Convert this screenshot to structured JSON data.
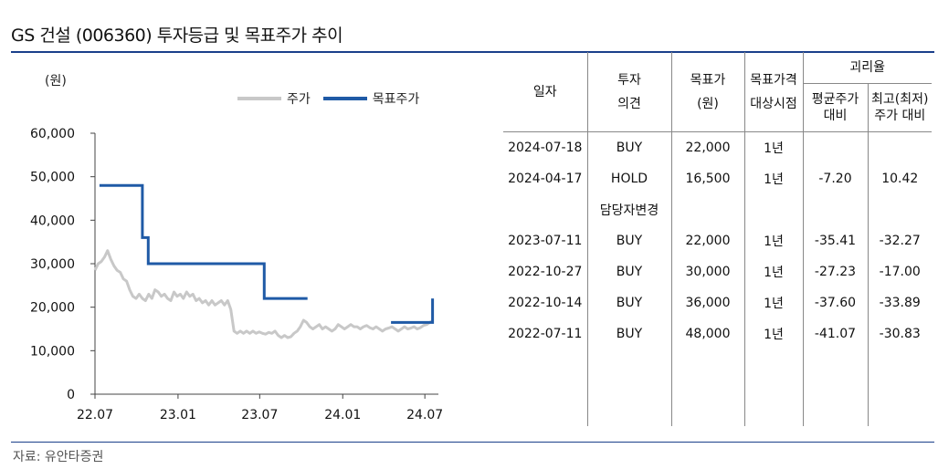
{
  "title": "GS 건설 (006360) 투자등급 및 목표주가 추이",
  "source": "자료: 유안타증권",
  "chart_data": {
    "type": "line",
    "unit": "(원)",
    "y_ticks": [
      "60,000",
      "50,000",
      "40,000",
      "30,000",
      "20,000",
      "10,000",
      "0"
    ],
    "ylim": [
      0,
      60000
    ],
    "x_ticks": [
      "22.07",
      "23.01",
      "23.07",
      "24.01",
      "24.07"
    ],
    "xlim": [
      "2022-07-01",
      "2024-07-31"
    ],
    "grid": false,
    "legend_position": "top",
    "series": [
      {
        "name": "주가",
        "color": "#c8c8c8",
        "points": [
          [
            "2022-07-01",
            28500
          ],
          [
            "2022-07-08",
            30000
          ],
          [
            "2022-07-15",
            30500
          ],
          [
            "2022-07-22",
            31500
          ],
          [
            "2022-07-29",
            33000
          ],
          [
            "2022-08-05",
            31000
          ],
          [
            "2022-08-12",
            29500
          ],
          [
            "2022-08-19",
            28500
          ],
          [
            "2022-08-26",
            28000
          ],
          [
            "2022-09-02",
            26500
          ],
          [
            "2022-09-09",
            26000
          ],
          [
            "2022-09-16",
            24000
          ],
          [
            "2022-09-23",
            22500
          ],
          [
            "2022-09-30",
            22000
          ],
          [
            "2022-10-07",
            23000
          ],
          [
            "2022-10-14",
            22000
          ],
          [
            "2022-10-21",
            21500
          ],
          [
            "2022-10-28",
            23000
          ],
          [
            "2022-11-04",
            22000
          ],
          [
            "2022-11-11",
            24000
          ],
          [
            "2022-11-18",
            23500
          ],
          [
            "2022-11-25",
            22500
          ],
          [
            "2022-12-02",
            23000
          ],
          [
            "2022-12-09",
            22000
          ],
          [
            "2022-12-16",
            21500
          ],
          [
            "2022-12-23",
            23500
          ],
          [
            "2022-12-30",
            22500
          ],
          [
            "2023-01-06",
            23000
          ],
          [
            "2023-01-13",
            22000
          ],
          [
            "2023-01-20",
            23500
          ],
          [
            "2023-01-27",
            22500
          ],
          [
            "2023-02-03",
            23000
          ],
          [
            "2023-02-10",
            21500
          ],
          [
            "2023-02-17",
            22000
          ],
          [
            "2023-02-24",
            21000
          ],
          [
            "2023-03-03",
            21500
          ],
          [
            "2023-03-10",
            20500
          ],
          [
            "2023-03-17",
            21500
          ],
          [
            "2023-03-24",
            20500
          ],
          [
            "2023-03-31",
            21000
          ],
          [
            "2023-04-07",
            21500
          ],
          [
            "2023-04-14",
            20500
          ],
          [
            "2023-04-21",
            21500
          ],
          [
            "2023-04-28",
            19500
          ],
          [
            "2023-05-05",
            14500
          ],
          [
            "2023-05-12",
            14000
          ],
          [
            "2023-05-19",
            14500
          ],
          [
            "2023-05-26",
            14000
          ],
          [
            "2023-06-02",
            14500
          ],
          [
            "2023-06-09",
            14000
          ],
          [
            "2023-06-16",
            14500
          ],
          [
            "2023-06-23",
            14000
          ],
          [
            "2023-06-30",
            14300
          ],
          [
            "2023-07-07",
            14000
          ],
          [
            "2023-07-14",
            13800
          ],
          [
            "2023-07-21",
            14200
          ],
          [
            "2023-07-28",
            14000
          ],
          [
            "2023-08-04",
            14500
          ],
          [
            "2023-08-11",
            13500
          ],
          [
            "2023-08-18",
            13000
          ],
          [
            "2023-08-25",
            13500
          ],
          [
            "2023-09-01",
            13000
          ],
          [
            "2023-09-08",
            13200
          ],
          [
            "2023-09-15",
            14000
          ],
          [
            "2023-09-22",
            14500
          ],
          [
            "2023-09-29",
            15500
          ],
          [
            "2023-10-06",
            17000
          ],
          [
            "2023-10-13",
            16500
          ],
          [
            "2023-10-20",
            15500
          ],
          [
            "2023-10-27",
            15000
          ],
          [
            "2023-11-03",
            15500
          ],
          [
            "2023-11-10",
            16000
          ],
          [
            "2023-11-17",
            15000
          ],
          [
            "2023-11-24",
            15500
          ],
          [
            "2023-12-01",
            15000
          ],
          [
            "2023-12-08",
            14500
          ],
          [
            "2023-12-15",
            15000
          ],
          [
            "2023-12-22",
            16000
          ],
          [
            "2023-12-29",
            15500
          ],
          [
            "2024-01-05",
            15000
          ],
          [
            "2024-01-12",
            15500
          ],
          [
            "2024-01-19",
            16000
          ],
          [
            "2024-01-26",
            15500
          ],
          [
            "2024-02-02",
            15500
          ],
          [
            "2024-02-09",
            15000
          ],
          [
            "2024-02-16",
            15500
          ],
          [
            "2024-02-23",
            15800
          ],
          [
            "2024-03-01",
            15300
          ],
          [
            "2024-03-08",
            15000
          ],
          [
            "2024-03-15",
            15500
          ],
          [
            "2024-03-22",
            15000
          ],
          [
            "2024-03-29",
            14500
          ],
          [
            "2024-04-05",
            15000
          ],
          [
            "2024-04-12",
            15200
          ],
          [
            "2024-04-19",
            15500
          ],
          [
            "2024-04-26",
            15000
          ],
          [
            "2024-05-03",
            14500
          ],
          [
            "2024-05-10",
            15000
          ],
          [
            "2024-05-17",
            15500
          ],
          [
            "2024-05-24",
            15000
          ],
          [
            "2024-05-31",
            15200
          ],
          [
            "2024-06-07",
            15500
          ],
          [
            "2024-06-14",
            15000
          ],
          [
            "2024-06-21",
            15300
          ],
          [
            "2024-06-28",
            15800
          ],
          [
            "2024-07-05",
            16000
          ],
          [
            "2024-07-12",
            16500
          ],
          [
            "2024-07-19",
            17000
          ]
        ]
      },
      {
        "name": "목표주가",
        "color": "#1f5aa6",
        "segments": [
          [
            [
              "2022-07-11",
              48000
            ],
            [
              "2022-10-14",
              48000
            ],
            [
              "2022-10-14",
              36000
            ],
            [
              "2022-10-27",
              36000
            ],
            [
              "2022-10-27",
              30000
            ],
            [
              "2023-07-11",
              30000
            ],
            [
              "2023-07-11",
              22000
            ],
            [
              "2023-10-15",
              22000
            ]
          ],
          [
            [
              "2024-04-17",
              16500
            ],
            [
              "2024-07-18",
              16500
            ],
            [
              "2024-07-18",
              22000
            ]
          ]
        ]
      }
    ]
  },
  "table": {
    "header": {
      "date": "일자",
      "opinion_line1": "투자",
      "opinion_line2": "의견",
      "target_line1": "목표가",
      "target_line2": "(원)",
      "period_line1": "목표가격",
      "period_line2": "대상시점",
      "gap": "괴리율",
      "avg_line1": "평균주가",
      "avg_line2": "대비",
      "hl_line1": "최고(최저)",
      "hl_line2": "주가 대비"
    },
    "rows": [
      {
        "date": "2024-07-18",
        "opinion": "BUY",
        "target": "22,000",
        "period": "1년",
        "avg": "",
        "hl": ""
      },
      {
        "date": "2024-04-17",
        "opinion": "HOLD",
        "target": "16,500",
        "period": "1년",
        "avg": "-7.20",
        "hl": "10.42"
      },
      {
        "date": "",
        "opinion": "담당자변경",
        "target": "",
        "period": "",
        "avg": "",
        "hl": ""
      },
      {
        "date": "2023-07-11",
        "opinion": "BUY",
        "target": "22,000",
        "period": "1년",
        "avg": "-35.41",
        "hl": "-32.27"
      },
      {
        "date": "2022-10-27",
        "opinion": "BUY",
        "target": "30,000",
        "period": "1년",
        "avg": "-27.23",
        "hl": "-17.00"
      },
      {
        "date": "2022-10-14",
        "opinion": "BUY",
        "target": "36,000",
        "period": "1년",
        "avg": "-37.60",
        "hl": "-33.89"
      },
      {
        "date": "2022-07-11",
        "opinion": "BUY",
        "target": "48,000",
        "period": "1년",
        "avg": "-41.07",
        "hl": "-30.83"
      }
    ]
  }
}
